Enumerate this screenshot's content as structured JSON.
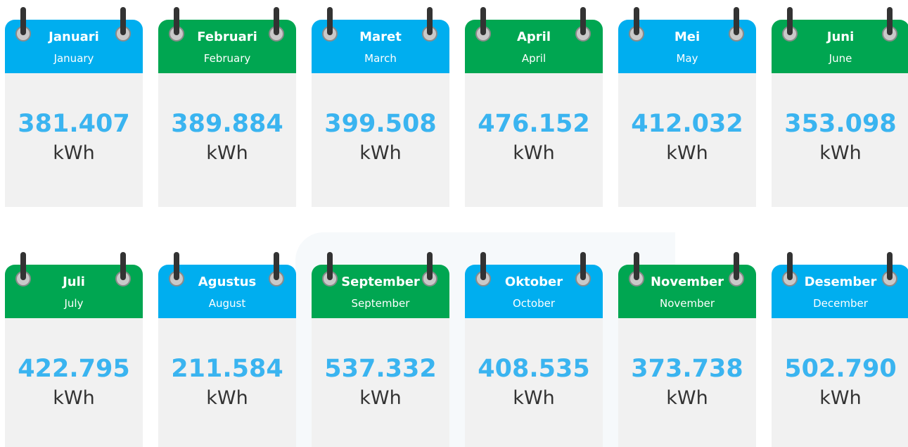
{
  "months": [
    {
      "title": "Januari",
      "subtitle": "January",
      "value": "381.407",
      "unit": "kWh"
    },
    {
      "title": "Februari",
      "subtitle": "February",
      "value": "389.884",
      "unit": "kWh"
    },
    {
      "title": "Maret",
      "subtitle": "March",
      "value": "399.508",
      "unit": "kWh"
    },
    {
      "title": "April",
      "subtitle": "April",
      "value": "476.152",
      "unit": "kWh"
    },
    {
      "title": "Mei",
      "subtitle": "May",
      "value": "412.032",
      "unit": "kWh"
    },
    {
      "title": "Juni",
      "subtitle": "June",
      "value": "353.098",
      "unit": "kWh"
    },
    {
      "title": "Juli",
      "subtitle": "July",
      "value": "422.795",
      "unit": "kWh"
    },
    {
      "title": "Agustus",
      "subtitle": "August",
      "value": "211.584",
      "unit": "kWh"
    },
    {
      "title": "September",
      "subtitle": "September",
      "value": "537.332",
      "unit": "kWh"
    },
    {
      "title": "Oktober",
      "subtitle": "October",
      "value": "408.535",
      "unit": "kWh"
    },
    {
      "title": "November",
      "subtitle": "November",
      "value": "373.738",
      "unit": "kWh"
    },
    {
      "title": "Desember",
      "subtitle": "December",
      "value": "502.790",
      "unit": "kWh"
    }
  ]
}
